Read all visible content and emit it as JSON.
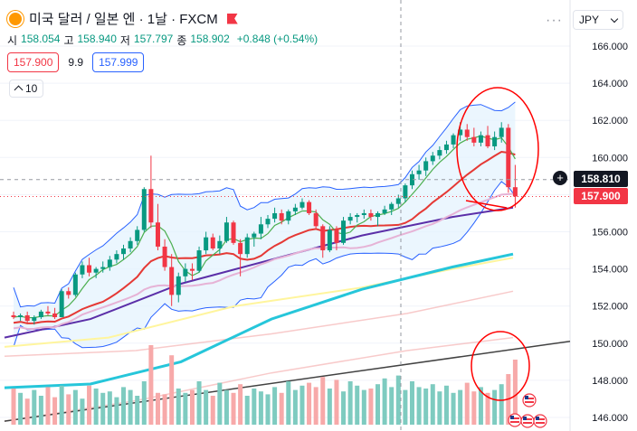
{
  "header": {
    "symbol_title": "미국 달러 / 일본 엔 · 1날 · FXCM",
    "ohlc": {
      "open_label": "시",
      "open": "158.054",
      "high_label": "고",
      "high": "158.940",
      "low_label": "저",
      "low": "157.797",
      "close_label": "종",
      "close": "158.902",
      "change": "+0.848 (+0.54%)"
    },
    "sell_price": "157.900",
    "spread": "9.9",
    "buy_price": "157.999",
    "indicator_count": "10",
    "currency_select": "JPY",
    "more_label": "···"
  },
  "price_tags": {
    "crosshair_price": "158.810",
    "last_price": "157.900"
  },
  "colors": {
    "up": "#089981",
    "down": "#f23645",
    "vol_up": "#7ecbc0",
    "vol_down": "#f7a9a9",
    "ma_green": "#4caf50",
    "ma_red": "#e53935",
    "ma_pink": "#e6b3d6",
    "ma_indigo": "#5b2fa8",
    "ma_cyan": "#26c6da",
    "ma_yellow": "#fff59d",
    "ma_salmon": "#f4a6a6",
    "bb": "#2962ff",
    "bb_fill": "#e3f2fd",
    "trend": "#424242",
    "annotation": "#ff0000"
  },
  "icons": [
    "symbol-dot-icon",
    "red-flag-icon",
    "chevron-up-icon",
    "chevron-down-icon",
    "plus-icon",
    "us-flag-icon"
  ],
  "chart_data": {
    "type": "candlestick",
    "y_axis": {
      "ticks": [
        "166.000",
        "164.000",
        "162.000",
        "160.000",
        "158.000",
        "156.000",
        "154.000",
        "152.000",
        "150.000",
        "148.000",
        "146.000"
      ],
      "ylim": [
        145.6,
        167.2
      ]
    },
    "candles": [
      [
        151.5,
        151.7,
        151.3,
        151.4
      ],
      [
        151.4,
        151.6,
        151.2,
        151.5
      ],
      [
        151.5,
        151.7,
        151.1,
        151.2
      ],
      [
        151.2,
        151.5,
        151.0,
        151.4
      ],
      [
        151.4,
        151.8,
        151.3,
        151.7
      ],
      [
        151.7,
        152.0,
        151.5,
        151.6
      ],
      [
        151.6,
        151.9,
        151.3,
        151.4
      ],
      [
        151.4,
        152.9,
        151.4,
        152.8
      ],
      [
        152.8,
        153.0,
        152.4,
        152.6
      ],
      [
        152.6,
        153.8,
        152.5,
        153.7
      ],
      [
        153.7,
        154.4,
        153.5,
        154.2
      ],
      [
        154.2,
        154.6,
        153.6,
        153.8
      ],
      [
        153.8,
        154.1,
        153.5,
        154.0
      ],
      [
        154.0,
        154.4,
        153.8,
        154.1
      ],
      [
        154.1,
        154.7,
        153.9,
        154.5
      ],
      [
        154.5,
        155.0,
        154.3,
        154.8
      ],
      [
        154.8,
        155.3,
        154.5,
        155.1
      ],
      [
        155.1,
        155.7,
        154.9,
        155.5
      ],
      [
        155.5,
        156.3,
        155.3,
        156.1
      ],
      [
        156.1,
        158.4,
        156.0,
        158.3
      ],
      [
        158.3,
        160.1,
        156.2,
        156.5
      ],
      [
        156.5,
        157.5,
        155.0,
        155.2
      ],
      [
        155.2,
        155.6,
        153.9,
        154.1
      ],
      [
        154.1,
        154.8,
        152.0,
        152.6
      ],
      [
        152.6,
        153.8,
        152.2,
        153.6
      ],
      [
        153.6,
        154.3,
        153.3,
        154.0
      ],
      [
        154.0,
        154.3,
        153.4,
        153.9
      ],
      [
        153.9,
        155.2,
        153.8,
        155.0
      ],
      [
        155.0,
        156.0,
        154.8,
        155.7
      ],
      [
        155.7,
        155.9,
        155.0,
        155.1
      ],
      [
        155.1,
        155.8,
        154.8,
        155.5
      ],
      [
        155.5,
        156.8,
        155.4,
        156.5
      ],
      [
        156.5,
        156.6,
        155.3,
        155.4
      ],
      [
        155.4,
        155.6,
        153.6,
        154.8
      ],
      [
        154.8,
        155.9,
        154.6,
        155.7
      ],
      [
        155.7,
        156.0,
        155.2,
        155.9
      ],
      [
        155.9,
        156.8,
        155.6,
        156.4
      ],
      [
        156.4,
        156.9,
        156.2,
        156.7
      ],
      [
        156.7,
        157.3,
        156.5,
        157.0
      ],
      [
        157.0,
        157.2,
        156.4,
        156.6
      ],
      [
        156.6,
        157.2,
        156.4,
        157.1
      ],
      [
        157.1,
        157.5,
        156.9,
        157.3
      ],
      [
        157.3,
        157.8,
        157.2,
        157.6
      ],
      [
        157.6,
        157.7,
        156.9,
        157.0
      ],
      [
        157.0,
        157.2,
        156.2,
        156.3
      ],
      [
        156.3,
        156.4,
        154.6,
        155.0
      ],
      [
        155.0,
        156.3,
        154.9,
        156.1
      ],
      [
        156.1,
        156.3,
        155.0,
        155.4
      ],
      [
        155.4,
        156.8,
        155.3,
        156.6
      ],
      [
        156.6,
        157.0,
        156.4,
        156.8
      ],
      [
        156.8,
        157.0,
        156.5,
        156.9
      ],
      [
        156.9,
        157.2,
        156.7,
        157.0
      ],
      [
        157.0,
        157.2,
        156.6,
        156.8
      ],
      [
        156.8,
        157.1,
        156.3,
        157.0
      ],
      [
        157.0,
        157.4,
        156.9,
        157.2
      ],
      [
        157.2,
        157.6,
        156.9,
        157.5
      ],
      [
        157.5,
        158.0,
        157.3,
        157.8
      ],
      [
        157.8,
        158.6,
        157.6,
        158.5
      ],
      [
        158.5,
        159.3,
        158.3,
        159.1
      ],
      [
        159.1,
        159.6,
        158.8,
        159.3
      ],
      [
        159.3,
        160.0,
        159.0,
        159.8
      ],
      [
        159.8,
        160.3,
        159.6,
        160.1
      ],
      [
        160.1,
        160.6,
        159.9,
        160.4
      ],
      [
        160.4,
        160.9,
        160.2,
        160.7
      ],
      [
        160.7,
        161.3,
        160.5,
        161.2
      ],
      [
        161.2,
        161.9,
        160.9,
        161.5
      ],
      [
        161.5,
        161.8,
        160.9,
        161.1
      ],
      [
        161.1,
        161.6,
        160.6,
        160.8
      ],
      [
        160.8,
        161.4,
        160.6,
        161.2
      ],
      [
        161.2,
        161.7,
        160.5,
        160.6
      ],
      [
        160.6,
        161.4,
        160.4,
        161.1
      ],
      [
        161.1,
        161.9,
        160.8,
        161.6
      ],
      [
        161.6,
        161.8,
        158.1,
        158.4
      ],
      [
        158.4,
        159.6,
        157.3,
        157.9
      ]
    ],
    "volume": [
      0.25,
      0.22,
      0.18,
      0.24,
      0.2,
      0.26,
      0.19,
      0.27,
      0.21,
      0.24,
      0.18,
      0.27,
      0.25,
      0.22,
      0.23,
      0.19,
      0.26,
      0.24,
      0.2,
      0.3,
      0.55,
      0.22,
      0.21,
      0.48,
      0.25,
      0.22,
      0.24,
      0.3,
      0.24,
      0.2,
      0.29,
      0.24,
      0.22,
      0.28,
      0.2,
      0.25,
      0.23,
      0.21,
      0.26,
      0.22,
      0.3,
      0.24,
      0.27,
      0.29,
      0.26,
      0.33,
      0.25,
      0.31,
      0.23,
      0.3,
      0.27,
      0.24,
      0.25,
      0.28,
      0.32,
      0.26,
      0.34,
      0.24,
      0.3,
      0.26,
      0.25,
      0.28,
      0.23,
      0.27,
      0.22,
      0.24,
      0.29,
      0.23,
      0.26,
      0.22,
      0.24,
      0.28,
      0.35,
      0.45
    ],
    "overlays": {
      "ma_short": "green",
      "ma_20": "red",
      "ma_50": "pink",
      "ma_100": "indigo",
      "ma_200": "cyan",
      "ma_yellow": "yellow",
      "ma_salmon": "salmon",
      "bollinger": "blue band",
      "trendline": "dark"
    },
    "grid": true
  }
}
